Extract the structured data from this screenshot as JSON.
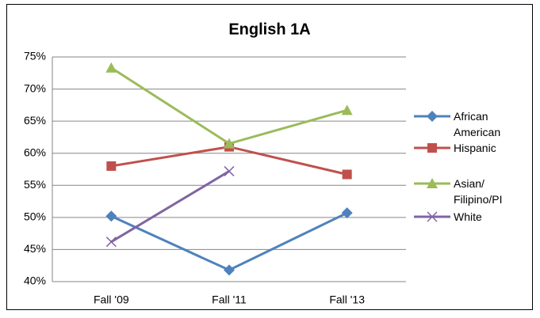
{
  "chart_data": {
    "type": "line",
    "title": "English 1A",
    "categories": [
      "Fall '09",
      "Fall '11",
      "Fall '13"
    ],
    "series": [
      {
        "name": "African American",
        "color": "#4f81bd",
        "marker": "diamond",
        "values": [
          50.2,
          41.8,
          50.7
        ]
      },
      {
        "name": "Hispanic",
        "color": "#c0504d",
        "marker": "square",
        "values": [
          58.0,
          61.0,
          56.7
        ]
      },
      {
        "name": "Asian/Filipino/PI",
        "color": "#9bbb59",
        "marker": "triangle",
        "values": [
          73.3,
          61.5,
          66.7
        ]
      },
      {
        "name": "White",
        "color": "#8064a2",
        "marker": "x",
        "values": [
          46.2,
          57.2,
          null
        ]
      }
    ],
    "ylim": [
      40,
      75
    ],
    "yticks": [
      {
        "value": 40,
        "label": "40%"
      },
      {
        "value": 45,
        "label": "45%"
      },
      {
        "value": 50,
        "label": "50%"
      },
      {
        "value": 55,
        "label": "55%"
      },
      {
        "value": 60,
        "label": "60%"
      },
      {
        "value": 65,
        "label": "65%"
      },
      {
        "value": 70,
        "label": "70%"
      },
      {
        "value": 75,
        "label": "75%"
      }
    ],
    "grid": true,
    "legend": "right"
  }
}
